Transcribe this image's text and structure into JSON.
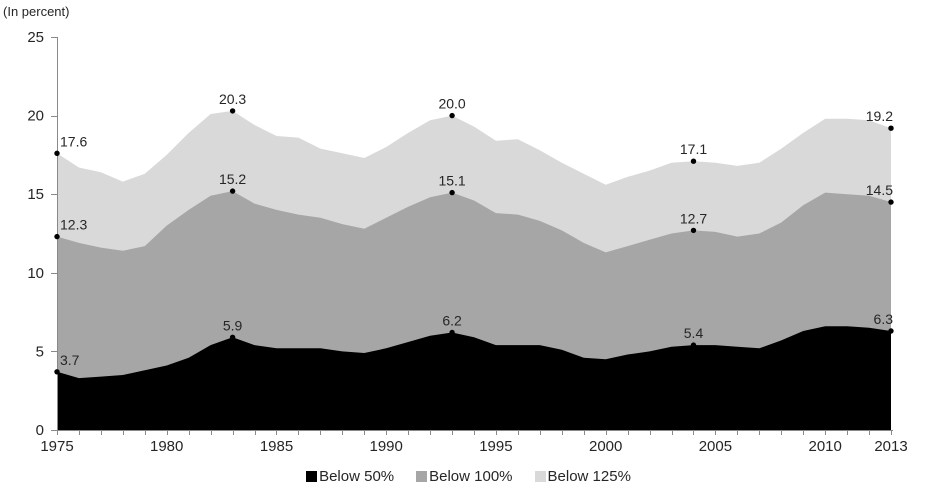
{
  "chart_data": {
    "type": "area",
    "mode": "overlapping",
    "title": "",
    "unit_label": "(In percent)",
    "background": "#ffffff",
    "text_color": "#262626",
    "axis_color": "#898989",
    "dot_color": "#000000",
    "grid": false,
    "legend_position": "bottom",
    "ylim": [
      0,
      25
    ],
    "yticks": [
      0,
      5,
      10,
      15,
      20,
      25
    ],
    "xtick_labels": [
      1975,
      1980,
      1985,
      1990,
      1995,
      2000,
      2005,
      2010,
      2013
    ],
    "x": [
      1975,
      1976,
      1977,
      1978,
      1979,
      1980,
      1981,
      1982,
      1983,
      1984,
      1985,
      1986,
      1987,
      1988,
      1989,
      1990,
      1991,
      1992,
      1993,
      1994,
      1995,
      1996,
      1997,
      1998,
      1999,
      2000,
      2001,
      2002,
      2003,
      2004,
      2005,
      2006,
      2007,
      2008,
      2009,
      2010,
      2011,
      2012,
      2013
    ],
    "series": [
      {
        "name": "Below 50%",
        "color": "#000000",
        "values": [
          3.7,
          3.3,
          3.4,
          3.5,
          3.8,
          4.1,
          4.6,
          5.4,
          5.9,
          5.4,
          5.2,
          5.2,
          5.2,
          5.0,
          4.9,
          5.2,
          5.6,
          6.0,
          6.2,
          5.9,
          5.4,
          5.4,
          5.4,
          5.1,
          4.6,
          4.5,
          4.8,
          5.0,
          5.3,
          5.4,
          5.4,
          5.3,
          5.2,
          5.7,
          6.3,
          6.6,
          6.6,
          6.5,
          6.3
        ]
      },
      {
        "name": "Below 100%",
        "color": "#a6a6a6",
        "values": [
          12.3,
          11.9,
          11.6,
          11.4,
          11.7,
          13.0,
          14.0,
          14.9,
          15.2,
          14.4,
          14.0,
          13.7,
          13.5,
          13.1,
          12.8,
          13.5,
          14.2,
          14.8,
          15.1,
          14.6,
          13.8,
          13.7,
          13.3,
          12.7,
          11.9,
          11.3,
          11.7,
          12.1,
          12.5,
          12.7,
          12.6,
          12.3,
          12.5,
          13.2,
          14.3,
          15.1,
          15.0,
          14.9,
          14.5
        ]
      },
      {
        "name": "Below 125%",
        "color": "#d9d9d9",
        "values": [
          17.6,
          16.7,
          16.4,
          15.8,
          16.3,
          17.5,
          18.9,
          20.1,
          20.3,
          19.4,
          18.7,
          18.6,
          17.9,
          17.6,
          17.3,
          18.0,
          18.9,
          19.7,
          20.0,
          19.3,
          18.4,
          18.5,
          17.8,
          17.0,
          16.3,
          15.6,
          16.1,
          16.5,
          17.0,
          17.1,
          17.0,
          16.8,
          17.0,
          17.9,
          18.9,
          19.8,
          19.8,
          19.7,
          19.2
        ]
      }
    ],
    "point_labels": [
      {
        "year": 1975,
        "value": 3.7,
        "label": "3.7",
        "anchor": "start"
      },
      {
        "year": 1975,
        "value": 12.3,
        "label": "12.3",
        "anchor": "start"
      },
      {
        "year": 1975,
        "value": 17.6,
        "label": "17.6",
        "anchor": "start"
      },
      {
        "year": 1983,
        "value": 5.9,
        "label": "5.9",
        "anchor": "middle"
      },
      {
        "year": 1983,
        "value": 15.2,
        "label": "15.2",
        "anchor": "middle"
      },
      {
        "year": 1983,
        "value": 20.3,
        "label": "20.3",
        "anchor": "middle"
      },
      {
        "year": 1993,
        "value": 6.2,
        "label": "6.2",
        "anchor": "middle"
      },
      {
        "year": 1993,
        "value": 15.1,
        "label": "15.1",
        "anchor": "middle"
      },
      {
        "year": 1993,
        "value": 20.0,
        "label": "20.0",
        "anchor": "middle"
      },
      {
        "year": 2004,
        "value": 5.4,
        "label": "5.4",
        "anchor": "middle"
      },
      {
        "year": 2004,
        "value": 12.7,
        "label": "12.7",
        "anchor": "middle"
      },
      {
        "year": 2004,
        "value": 17.1,
        "label": "17.1",
        "anchor": "middle"
      },
      {
        "year": 2013,
        "value": 6.3,
        "label": "6.3",
        "anchor": "end"
      },
      {
        "year": 2013,
        "value": 14.5,
        "label": "14.5",
        "anchor": "end"
      },
      {
        "year": 2013,
        "value": 19.2,
        "label": "19.2",
        "anchor": "end"
      }
    ]
  }
}
